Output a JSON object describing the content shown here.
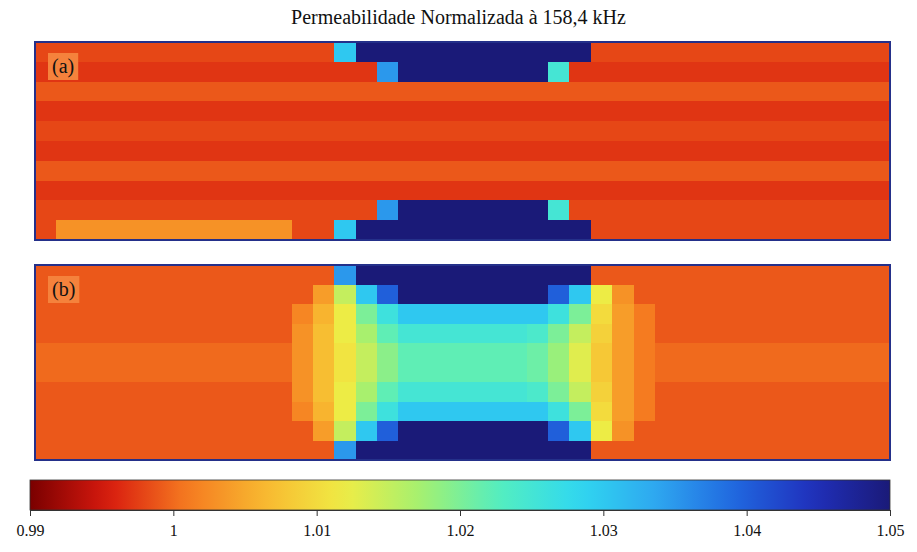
{
  "chart_data": {
    "type": "heatmap",
    "title": "Permeabilidade Normalizada à 158,4 kHz",
    "panels": [
      {
        "label": "(a)",
        "cells": [
          [
            0.998,
            0.998,
            0.998,
            0.998,
            0.998,
            0.998,
            0.998,
            0.998,
            0.998,
            0.998,
            0.998,
            0.998,
            0.998,
            0.998,
            1.03,
            1.05,
            1.05,
            1.05,
            1.05,
            1.05,
            1.05,
            1.05,
            1.05,
            1.05,
            1.05,
            1.05,
            0.998,
            0.998,
            0.998,
            0.998,
            0.998,
            0.998,
            0.998,
            0.998,
            0.998,
            0.998,
            0.998,
            0.998,
            0.998,
            0.998
          ],
          [
            0.997,
            0.997,
            0.997,
            0.997,
            0.997,
            0.997,
            0.997,
            0.997,
            0.997,
            0.997,
            0.997,
            0.997,
            0.997,
            0.997,
            0.997,
            0.997,
            1.035,
            1.05,
            1.05,
            1.05,
            1.05,
            1.05,
            1.05,
            1.05,
            1.025,
            0.997,
            0.997,
            0.997,
            0.997,
            0.997,
            0.997,
            0.997,
            0.997,
            0.997,
            0.997,
            0.997,
            0.997,
            0.997,
            0.997,
            0.997
          ],
          [
            0.999,
            0.999,
            0.999,
            0.999,
            0.999,
            0.999,
            0.999,
            0.999,
            0.999,
            0.999,
            0.999,
            0.999,
            0.999,
            0.999,
            0.999,
            0.999,
            0.999,
            0.999,
            0.999,
            0.999,
            0.999,
            0.999,
            0.999,
            0.999,
            0.999,
            0.999,
            0.999,
            0.999,
            0.999,
            0.999,
            0.999,
            0.999,
            0.999,
            0.999,
            0.999,
            0.999,
            0.999,
            0.999,
            0.999,
            0.999
          ],
          [
            0.997,
            0.997,
            0.997,
            0.997,
            0.997,
            0.997,
            0.997,
            0.997,
            0.997,
            0.997,
            0.997,
            0.997,
            0.997,
            0.997,
            0.997,
            0.997,
            0.997,
            0.997,
            0.997,
            0.997,
            0.997,
            0.997,
            0.997,
            0.997,
            0.997,
            0.997,
            0.997,
            0.997,
            0.997,
            0.997,
            0.997,
            0.997,
            0.997,
            0.997,
            0.997,
            0.997,
            0.997,
            0.997,
            0.997,
            0.997
          ],
          [
            0.998,
            0.998,
            0.998,
            0.998,
            0.998,
            0.998,
            0.998,
            0.998,
            0.998,
            0.998,
            0.998,
            0.998,
            0.998,
            0.998,
            0.998,
            0.998,
            0.998,
            0.998,
            0.998,
            0.998,
            0.998,
            0.998,
            0.998,
            0.998,
            0.998,
            0.998,
            0.998,
            0.998,
            0.998,
            0.998,
            0.998,
            0.998,
            0.998,
            0.998,
            0.998,
            0.998,
            0.998,
            0.998,
            0.998,
            0.998
          ],
          [
            0.997,
            0.997,
            0.997,
            0.997,
            0.997,
            0.997,
            0.997,
            0.997,
            0.997,
            0.997,
            0.997,
            0.997,
            0.997,
            0.997,
            0.997,
            0.997,
            0.997,
            0.997,
            0.997,
            0.997,
            0.997,
            0.997,
            0.997,
            0.997,
            0.997,
            0.997,
            0.997,
            0.997,
            0.997,
            0.997,
            0.997,
            0.997,
            0.997,
            0.997,
            0.997,
            0.997,
            0.997,
            0.997,
            0.997,
            0.997
          ],
          [
            0.999,
            0.999,
            0.999,
            0.999,
            0.999,
            0.999,
            0.999,
            0.999,
            0.999,
            0.999,
            0.999,
            0.999,
            0.999,
            0.999,
            0.999,
            0.999,
            0.999,
            0.999,
            0.999,
            0.999,
            0.999,
            0.999,
            0.999,
            0.999,
            0.999,
            0.999,
            0.999,
            0.999,
            0.999,
            0.999,
            0.999,
            0.999,
            0.999,
            0.999,
            0.999,
            0.999,
            0.999,
            0.999,
            0.999,
            0.999
          ],
          [
            0.997,
            0.997,
            0.997,
            0.997,
            0.997,
            0.997,
            0.997,
            0.997,
            0.997,
            0.997,
            0.997,
            0.997,
            0.997,
            0.997,
            0.997,
            0.997,
            0.997,
            0.997,
            0.997,
            0.997,
            0.997,
            0.997,
            0.997,
            0.997,
            0.997,
            0.997,
            0.997,
            0.997,
            0.997,
            0.997,
            0.997,
            0.997,
            0.997,
            0.997,
            0.997,
            0.997,
            0.997,
            0.997,
            0.997,
            0.997
          ],
          [
            0.998,
            0.998,
            0.998,
            0.998,
            0.998,
            0.998,
            0.998,
            0.998,
            0.998,
            0.998,
            0.998,
            0.998,
            0.998,
            0.998,
            0.998,
            0.998,
            1.035,
            1.05,
            1.05,
            1.05,
            1.05,
            1.05,
            1.05,
            1.05,
            1.025,
            0.998,
            0.998,
            0.998,
            0.998,
            0.998,
            0.998,
            0.998,
            0.998,
            0.998,
            0.998,
            0.998,
            0.998,
            0.998,
            0.998,
            0.998
          ],
          [
            0.998,
            1.003,
            1.003,
            1.003,
            1.003,
            1.003,
            1.003,
            1.003,
            1.003,
            1.003,
            1.003,
            1.003,
            0.998,
            0.998,
            1.03,
            1.05,
            1.05,
            1.05,
            1.05,
            1.05,
            1.05,
            1.05,
            1.05,
            1.05,
            1.05,
            1.05,
            0.998,
            0.998,
            0.998,
            0.998,
            0.998,
            0.998,
            0.998,
            0.998,
            0.998,
            0.998,
            0.998,
            0.998,
            0.998,
            0.998
          ]
        ]
      },
      {
        "label": "(b)",
        "cells": [
          [
            0.999,
            0.999,
            0.999,
            0.999,
            0.999,
            0.999,
            0.999,
            0.999,
            0.999,
            0.999,
            0.999,
            0.999,
            0.999,
            0.999,
            1.035,
            1.05,
            1.05,
            1.05,
            1.05,
            1.05,
            1.05,
            1.05,
            1.05,
            1.05,
            1.05,
            1.05,
            0.999,
            0.999,
            0.999,
            0.999,
            0.999,
            0.999,
            0.999,
            0.999,
            0.999,
            0.999,
            0.999,
            0.999,
            0.999,
            0.999
          ],
          [
            0.999,
            0.999,
            0.999,
            0.999,
            0.999,
            0.999,
            0.999,
            0.999,
            0.999,
            0.999,
            0.999,
            0.999,
            0.999,
            1.004,
            1.015,
            1.03,
            1.04,
            1.05,
            1.05,
            1.05,
            1.05,
            1.05,
            1.05,
            1.05,
            1.04,
            1.03,
            1.012,
            1.003,
            0.999,
            0.999,
            0.999,
            0.999,
            0.999,
            0.999,
            0.999,
            0.999,
            0.999,
            0.999,
            0.999,
            0.999
          ],
          [
            0.999,
            0.999,
            0.999,
            0.999,
            0.999,
            0.999,
            0.999,
            0.999,
            0.999,
            0.999,
            0.999,
            0.999,
            1.002,
            1.006,
            1.012,
            1.02,
            1.026,
            1.03,
            1.03,
            1.03,
            1.03,
            1.03,
            1.03,
            1.03,
            1.026,
            1.02,
            1.01,
            1.004,
            1.001,
            0.999,
            0.999,
            0.999,
            0.999,
            0.999,
            0.999,
            0.999,
            0.999,
            0.999,
            0.999,
            0.999
          ],
          [
            0.999,
            0.999,
            0.999,
            0.999,
            0.999,
            0.999,
            0.999,
            0.999,
            0.999,
            0.999,
            0.999,
            0.999,
            1.003,
            1.007,
            1.012,
            1.017,
            1.022,
            1.025,
            1.025,
            1.025,
            1.025,
            1.025,
            1.025,
            1.024,
            1.02,
            1.015,
            1.009,
            1.004,
            1.001,
            0.999,
            0.999,
            0.999,
            0.999,
            0.999,
            0.999,
            0.999,
            0.999,
            0.999,
            0.999,
            0.999
          ],
          [
            1,
            1,
            1,
            1,
            1,
            1,
            1,
            1,
            1,
            1,
            1,
            1,
            1.003,
            1.007,
            1.011,
            1.015,
            1.019,
            1.022,
            1.022,
            1.022,
            1.022,
            1.022,
            1.022,
            1.021,
            1.018,
            1.013,
            1.008,
            1.004,
            1.001,
            1,
            1,
            1,
            1,
            1,
            1,
            1,
            1,
            1,
            1,
            1
          ],
          [
            1,
            1,
            1,
            1,
            1,
            1,
            1,
            1,
            1,
            1,
            1,
            1,
            1.003,
            1.007,
            1.011,
            1.015,
            1.019,
            1.022,
            1.022,
            1.022,
            1.022,
            1.022,
            1.022,
            1.021,
            1.018,
            1.013,
            1.008,
            1.004,
            1.001,
            1,
            1,
            1,
            1,
            1,
            1,
            1,
            1,
            1,
            1,
            1
          ],
          [
            0.999,
            0.999,
            0.999,
            0.999,
            0.999,
            0.999,
            0.999,
            0.999,
            0.999,
            0.999,
            0.999,
            0.999,
            1.003,
            1.007,
            1.012,
            1.017,
            1.022,
            1.025,
            1.025,
            1.025,
            1.025,
            1.025,
            1.025,
            1.024,
            1.02,
            1.015,
            1.009,
            1.004,
            1.001,
            0.999,
            0.999,
            0.999,
            0.999,
            0.999,
            0.999,
            0.999,
            0.999,
            0.999,
            0.999,
            0.999
          ],
          [
            0.999,
            0.999,
            0.999,
            0.999,
            0.999,
            0.999,
            0.999,
            0.999,
            0.999,
            0.999,
            0.999,
            0.999,
            1.002,
            1.006,
            1.012,
            1.02,
            1.026,
            1.03,
            1.03,
            1.03,
            1.03,
            1.03,
            1.03,
            1.03,
            1.026,
            1.02,
            1.01,
            1.004,
            1.001,
            0.999,
            0.999,
            0.999,
            0.999,
            0.999,
            0.999,
            0.999,
            0.999,
            0.999,
            0.999,
            0.999
          ],
          [
            0.999,
            0.999,
            0.999,
            0.999,
            0.999,
            0.999,
            0.999,
            0.999,
            0.999,
            0.999,
            0.999,
            0.999,
            0.999,
            1.004,
            1.015,
            1.03,
            1.04,
            1.05,
            1.05,
            1.05,
            1.05,
            1.05,
            1.05,
            1.05,
            1.04,
            1.03,
            1.012,
            1.003,
            0.999,
            0.999,
            0.999,
            0.999,
            0.999,
            0.999,
            0.999,
            0.999,
            0.999,
            0.999,
            0.999,
            0.999
          ],
          [
            0.999,
            0.999,
            0.999,
            0.999,
            0.999,
            0.999,
            0.999,
            0.999,
            0.999,
            0.999,
            0.999,
            0.999,
            0.999,
            0.999,
            1.035,
            1.05,
            1.05,
            1.05,
            1.05,
            1.05,
            1.05,
            1.05,
            1.05,
            1.05,
            1.05,
            1.05,
            0.999,
            0.999,
            0.999,
            0.999,
            0.999,
            0.999,
            0.999,
            0.999,
            0.999,
            0.999,
            0.999,
            0.999,
            0.999,
            0.999
          ]
        ]
      }
    ],
    "colorbar": {
      "range": [
        0.99,
        1.05
      ],
      "ticks": [
        0.99,
        1,
        1.01,
        1.02,
        1.03,
        1.04,
        1.05
      ]
    }
  }
}
